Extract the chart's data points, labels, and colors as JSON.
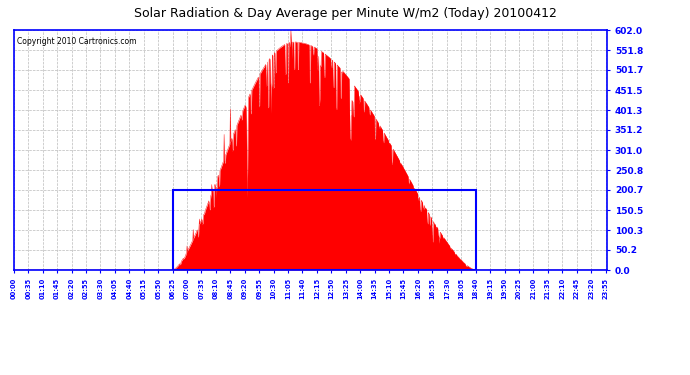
{
  "title": "Solar Radiation & Day Average per Minute W/m2 (Today) 20100412",
  "copyright": "Copyright 2010 Cartronics.com",
  "y_max": 602.0,
  "y_ticks": [
    0.0,
    50.2,
    100.3,
    150.5,
    200.7,
    250.8,
    301.0,
    351.2,
    401.3,
    451.5,
    501.7,
    551.8,
    602.0
  ],
  "day_average": 200.7,
  "sunrise_min": 385,
  "sunset_min": 1120,
  "total_minutes": 1440,
  "bar_color": "#FF0000",
  "avg_box_color": "#0000FF",
  "background_color": "#FFFFFF",
  "grid_color": "#BBBBBB",
  "title_color": "#000000",
  "copyright_color": "#000000",
  "peak_minute": 680,
  "figwidth": 6.9,
  "figheight": 3.75,
  "dpi": 100
}
